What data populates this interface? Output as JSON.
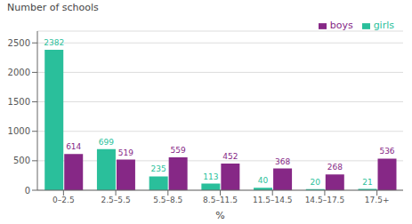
{
  "chart_data": {
    "type": "bar",
    "categories": [
      "0–2.5",
      "2.5–5.5",
      "5.5–8.5",
      "8.5–11.5",
      "11.5–14.5",
      "14.5–17.5",
      "17.5+"
    ],
    "series": [
      {
        "name": "girls",
        "color": "#2abf9b",
        "values": [
          2382,
          699,
          235,
          113,
          40,
          20,
          21
        ]
      },
      {
        "name": "boys",
        "color": "#862886",
        "values": [
          614,
          519,
          559,
          452,
          368,
          268,
          536
        ]
      }
    ],
    "x_label": "%",
    "y_label": "Number of schools",
    "ylim": [
      0,
      2700
    ],
    "yticks": [
      0,
      500,
      1000,
      1500,
      2000,
      2500
    ],
    "grid": true,
    "legend": "upper right",
    "data_labels": true
  }
}
